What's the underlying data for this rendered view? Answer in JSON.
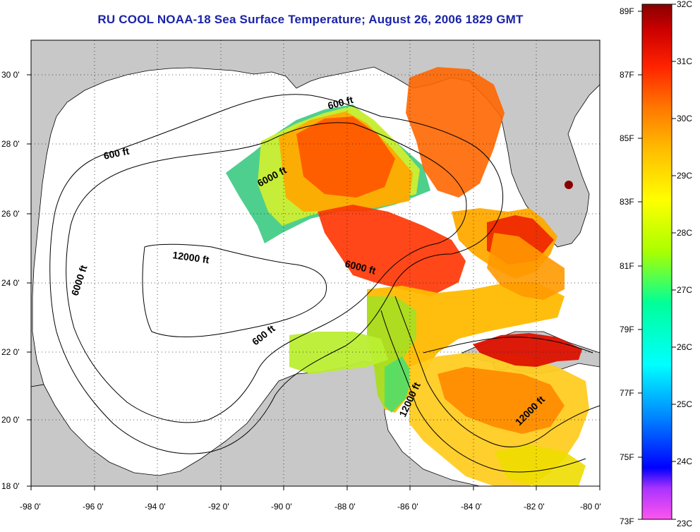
{
  "title": "RU COOL  NOAA-18  Sea Surface Temperature;  August 26, 2006 1829 GMT",
  "map": {
    "lon_range": [
      -98,
      -80
    ],
    "lat_range": [
      18,
      31
    ],
    "lon_ticks": [
      "-98 0'",
      "-96 0'",
      "-94 0'",
      "-92 0'",
      "-90 0'",
      "-88 0'",
      "-86 0'",
      "-84 0'",
      "-82 0'",
      "-80 0'"
    ],
    "lat_ticks": [
      "18 0'",
      "20 0'",
      "22 0'",
      "24 0'",
      "26 0'",
      "28 0'",
      "30 0'"
    ],
    "grid": "dotted",
    "land_color": "#c8c8c8",
    "water_color": "#ffffff",
    "contour_labels": [
      {
        "text": "600 ft",
        "lon": -96.4,
        "lat": 27.7
      },
      {
        "text": "600 ft",
        "lon": -87.5,
        "lat": 29.3
      },
      {
        "text": "600 ft",
        "lon": -89.9,
        "lat": 22.7
      },
      {
        "text": "6000 ft",
        "lon": -89.2,
        "lat": 27.2
      },
      {
        "text": "6000 ft",
        "lon": -96.5,
        "lat": 24.0
      },
      {
        "text": "6000 ft",
        "lon": -86.7,
        "lat": 24.6
      },
      {
        "text": "12000 ft",
        "lon": -92.8,
        "lat": 24.9
      },
      {
        "text": "12000 ft",
        "lon": -85.5,
        "lat": 21.0
      },
      {
        "text": "12000 ft",
        "lon": -81.7,
        "lat": 20.1
      }
    ]
  },
  "colorbar": {
    "fahrenheit_labels": [
      "89F",
      "87F",
      "85F",
      "83F",
      "81F",
      "79F",
      "77F",
      "75F",
      "73F"
    ],
    "celsius_labels": [
      "32C",
      "31C",
      "30C",
      "29C",
      "28C",
      "27C",
      "26C",
      "25C",
      "24C",
      "23C"
    ],
    "range_c": [
      23,
      32
    ],
    "colors": [
      "#ff55ee",
      "#8822ff",
      "#0000ff",
      "#0088ff",
      "#00ffff",
      "#00ff88",
      "#aaff00",
      "#ffff00",
      "#ffbb00",
      "#ff7700",
      "#ff2200",
      "#cc0000",
      "#880000"
    ]
  }
}
